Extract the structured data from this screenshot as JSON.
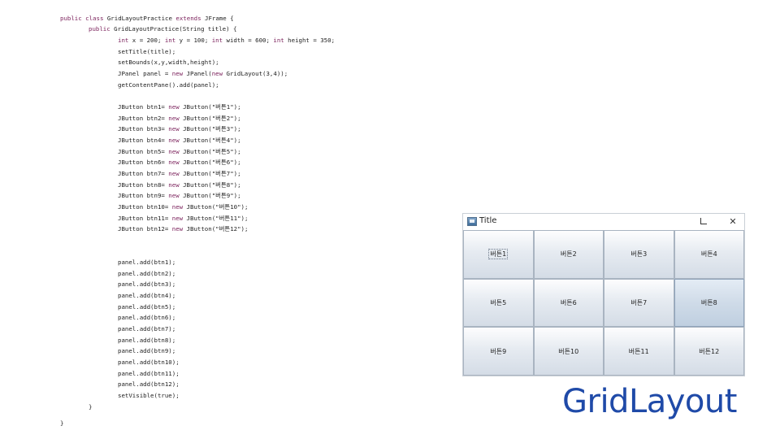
{
  "code": {
    "lines": [
      "public class GridLayoutPractice extends JFrame {",
      "public GridLayoutPractice(String title) {",
      "int x = 200; int y = 100; int width = 600; int height = 350;",
      "setTitle(title);",
      "setBounds(x,y,width,height);",
      "JPanel panel = new JPanel(new GridLayout(3,4));",
      "getContentPane().add(panel);",
      "JButton btn1= new JButton(\"버튼1\");",
      "JButton btn2= new JButton(\"버튼2\");",
      "JButton btn3= new JButton(\"버튼3\");",
      "JButton btn4= new JButton(\"버튼4\");",
      "JButton btn5= new JButton(\"버튼5\");",
      "JButton btn6= new JButton(\"버튼6\");",
      "JButton btn7= new JButton(\"버튼7\");",
      "JButton btn8= new JButton(\"버튼8\");",
      "JButton btn9= new JButton(\"버튼9\");",
      "JButton btn10= new JButton(\"버튼10\");",
      "JButton btn11= new JButton(\"버튼11\");",
      "JButton btn12= new JButton(\"버튼12\");",
      "panel.add(btn1);",
      "panel.add(btn2);",
      "panel.add(btn3);",
      "panel.add(btn4);",
      "panel.add(btn5);",
      "panel.add(btn6);",
      "panel.add(btn7);",
      "panel.add(btn8);",
      "panel.add(btn9);",
      "panel.add(btn10);",
      "panel.add(btn11);",
      "panel.add(btn12);",
      "setVisible(true);",
      "}",
      "}"
    ]
  },
  "window": {
    "title": "Title",
    "maximize_icon": "maximize-icon",
    "close_label": "✕",
    "buttons": [
      "버튼1",
      "버튼2",
      "버튼3",
      "버튼4",
      "버튼5",
      "버튼6",
      "버튼7",
      "버튼8",
      "버튼9",
      "버튼10",
      "버튼11",
      "버튼12"
    ]
  },
  "label": "GridLayout",
  "colors": {
    "keyword": "#7a1f5a",
    "label": "#1f4aa8"
  }
}
